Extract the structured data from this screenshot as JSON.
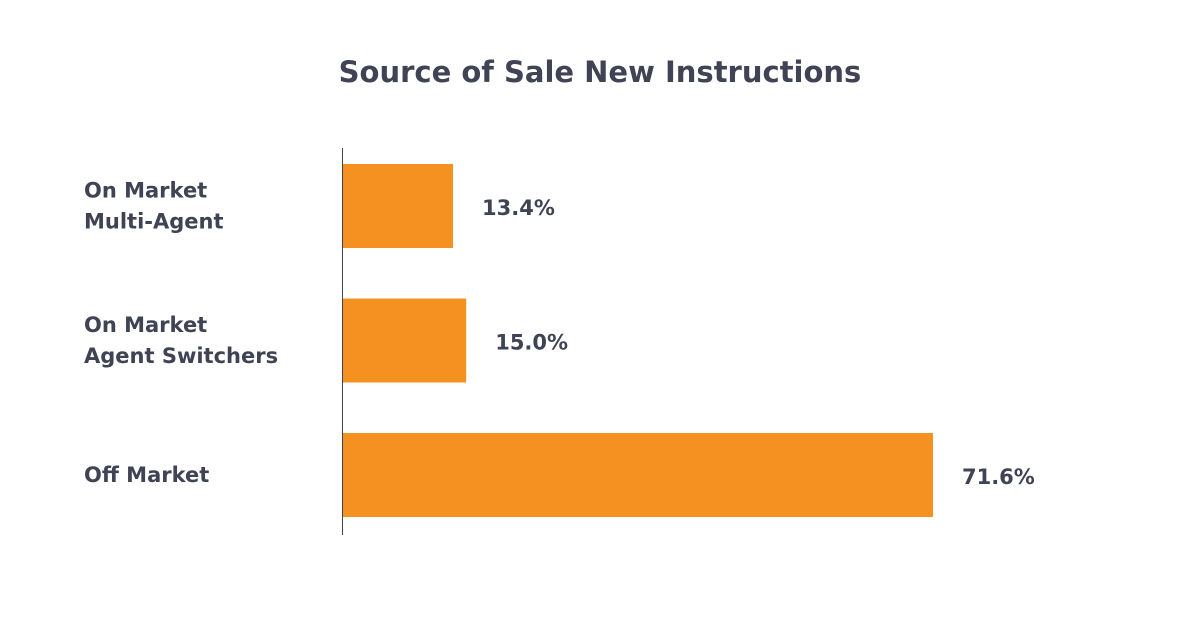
{
  "chart_data": {
    "type": "bar",
    "orientation": "horizontal",
    "title": "Source of Sale New Instructions",
    "categories": [
      [
        "On Market",
        "Multi-Agent"
      ],
      [
        "On Market",
        "Agent Switchers"
      ],
      [
        "Off Market"
      ]
    ],
    "values": [
      13.4,
      15.0,
      71.6
    ],
    "value_labels": [
      "13.4%",
      "15.0%",
      "71.6%"
    ],
    "xlim": [
      0,
      87
    ],
    "xlabel": "",
    "ylabel": "",
    "grid": false,
    "legend": "none",
    "colors": {
      "bar": "#f59121",
      "text": "#3f4354",
      "axis": "#3f4354",
      "background": "#ffffff"
    }
  }
}
